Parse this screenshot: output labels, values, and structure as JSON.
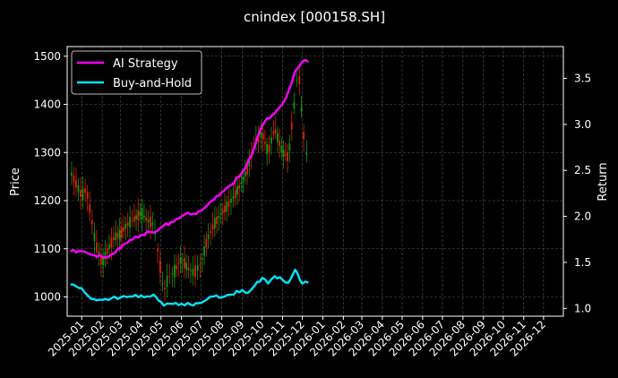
{
  "chart_data": {
    "type": "line",
    "title": "cnindex [000158.SH]",
    "ylabel_left": "Price",
    "ylabel_right": "Return",
    "ylim_left": [
      960,
      1520
    ],
    "ylim_right": [
      0.915,
      3.845
    ],
    "y_ticks_left": [
      "1000",
      "1100",
      "1200",
      "1300",
      "1400",
      "1500"
    ],
    "y_ticks_right": [
      "1.0",
      "1.5",
      "2.0",
      "2.5",
      "3.0",
      "3.5"
    ],
    "x_ticks": [
      "2025-01",
      "2025-02",
      "2025-03",
      "2025-04",
      "2025-05",
      "2025-06",
      "2025-07",
      "2025-08",
      "2025-09",
      "2025-10",
      "2025-11",
      "2025-12",
      "2026-01",
      "2026-02",
      "2026-03",
      "2026-04",
      "2026-05",
      "2026-06",
      "2026-07",
      "2026-08",
      "2026-09",
      "2026-10",
      "2026-11",
      "2026-12"
    ],
    "grid": true,
    "legend_position": "top-left",
    "background": "#000000",
    "series": [
      {
        "name": "AI Strategy",
        "axis": "right",
        "color": "#ff00ff",
        "points": [
          [
            "2024-12-15",
            1.62
          ],
          [
            "2025-01-01",
            1.62
          ],
          [
            "2025-01-10",
            1.6
          ],
          [
            "2025-01-20",
            1.58
          ],
          [
            "2025-02-01",
            1.56
          ],
          [
            "2025-02-10",
            1.56
          ],
          [
            "2025-02-20",
            1.6
          ],
          [
            "2025-03-01",
            1.66
          ],
          [
            "2025-03-15",
            1.74
          ],
          [
            "2025-04-01",
            1.8
          ],
          [
            "2025-04-15",
            1.83
          ],
          [
            "2025-04-25",
            1.84
          ],
          [
            "2025-05-05",
            1.9
          ],
          [
            "2025-05-20",
            1.94
          ],
          [
            "2025-06-01",
            2.0
          ],
          [
            "2025-06-10",
            2.04
          ],
          [
            "2025-06-20",
            2.03
          ],
          [
            "2025-07-01",
            2.06
          ],
          [
            "2025-07-10",
            2.12
          ],
          [
            "2025-07-20",
            2.18
          ],
          [
            "2025-08-01",
            2.26
          ],
          [
            "2025-08-15",
            2.34
          ],
          [
            "2025-09-01",
            2.48
          ],
          [
            "2025-09-15",
            2.66
          ],
          [
            "2025-09-25",
            2.88
          ],
          [
            "2025-10-05",
            3.03
          ],
          [
            "2025-10-20",
            3.12
          ],
          [
            "2025-11-01",
            3.22
          ],
          [
            "2025-11-10",
            3.36
          ],
          [
            "2025-11-20",
            3.58
          ],
          [
            "2025-12-01",
            3.68
          ],
          [
            "2025-12-05",
            3.7
          ],
          [
            "2025-12-10",
            3.68
          ]
        ]
      },
      {
        "name": "Buy-and-Hold",
        "axis": "right",
        "color": "#00e5ff",
        "points": [
          [
            "2024-12-15",
            1.26
          ],
          [
            "2025-01-01",
            1.22
          ],
          [
            "2025-01-10",
            1.14
          ],
          [
            "2025-01-20",
            1.1
          ],
          [
            "2025-02-01",
            1.09
          ],
          [
            "2025-02-15",
            1.11
          ],
          [
            "2025-03-01",
            1.12
          ],
          [
            "2025-03-15",
            1.13
          ],
          [
            "2025-04-01",
            1.14
          ],
          [
            "2025-04-10",
            1.13
          ],
          [
            "2025-04-20",
            1.15
          ],
          [
            "2025-04-28",
            1.08
          ],
          [
            "2025-05-05",
            1.03
          ],
          [
            "2025-05-15",
            1.05
          ],
          [
            "2025-06-01",
            1.05
          ],
          [
            "2025-06-15",
            1.04
          ],
          [
            "2025-07-01",
            1.06
          ],
          [
            "2025-07-10",
            1.1
          ],
          [
            "2025-07-20",
            1.13
          ],
          [
            "2025-08-01",
            1.12
          ],
          [
            "2025-08-15",
            1.15
          ],
          [
            "2025-09-01",
            1.2
          ],
          [
            "2025-09-10",
            1.17
          ],
          [
            "2025-09-20",
            1.25
          ],
          [
            "2025-10-01",
            1.33
          ],
          [
            "2025-10-10",
            1.27
          ],
          [
            "2025-10-20",
            1.35
          ],
          [
            "2025-11-01",
            1.31
          ],
          [
            "2025-11-10",
            1.28
          ],
          [
            "2025-11-20",
            1.42
          ],
          [
            "2025-12-01",
            1.27
          ],
          [
            "2025-12-10",
            1.28
          ]
        ]
      },
      {
        "name": "",
        "axis": "left",
        "render": "candles",
        "up_color": "#dd2200",
        "down_color": "#119911",
        "points": [
          [
            "2024-12-15",
            1260
          ],
          [
            "2025-01-01",
            1210
          ],
          [
            "2025-01-08",
            1225
          ],
          [
            "2025-01-15",
            1170
          ],
          [
            "2025-01-22",
            1110
          ],
          [
            "2025-02-01",
            1070
          ],
          [
            "2025-02-10",
            1100
          ],
          [
            "2025-02-20",
            1125
          ],
          [
            "2025-03-01",
            1130
          ],
          [
            "2025-03-10",
            1150
          ],
          [
            "2025-03-20",
            1160
          ],
          [
            "2025-04-01",
            1175
          ],
          [
            "2025-04-10",
            1160
          ],
          [
            "2025-04-20",
            1150
          ],
          [
            "2025-04-28",
            1080
          ],
          [
            "2025-05-05",
            1010
          ],
          [
            "2025-05-12",
            1040
          ],
          [
            "2025-05-20",
            1050
          ],
          [
            "2025-06-01",
            1080
          ],
          [
            "2025-06-10",
            1060
          ],
          [
            "2025-06-20",
            1050
          ],
          [
            "2025-07-01",
            1070
          ],
          [
            "2025-07-10",
            1120
          ],
          [
            "2025-07-20",
            1150
          ],
          [
            "2025-08-01",
            1175
          ],
          [
            "2025-08-10",
            1190
          ],
          [
            "2025-08-20",
            1210
          ],
          [
            "2025-09-01",
            1240
          ],
          [
            "2025-09-10",
            1270
          ],
          [
            "2025-09-20",
            1320
          ],
          [
            "2025-10-01",
            1340
          ],
          [
            "2025-10-10",
            1300
          ],
          [
            "2025-10-20",
            1350
          ],
          [
            "2025-11-01",
            1300
          ],
          [
            "2025-11-10",
            1290
          ],
          [
            "2025-11-20",
            1420
          ],
          [
            "2025-11-25",
            1480
          ],
          [
            "2025-12-01",
            1360
          ],
          [
            "2025-12-05",
            1310
          ],
          [
            "2025-12-10",
            1285
          ]
        ]
      }
    ]
  }
}
